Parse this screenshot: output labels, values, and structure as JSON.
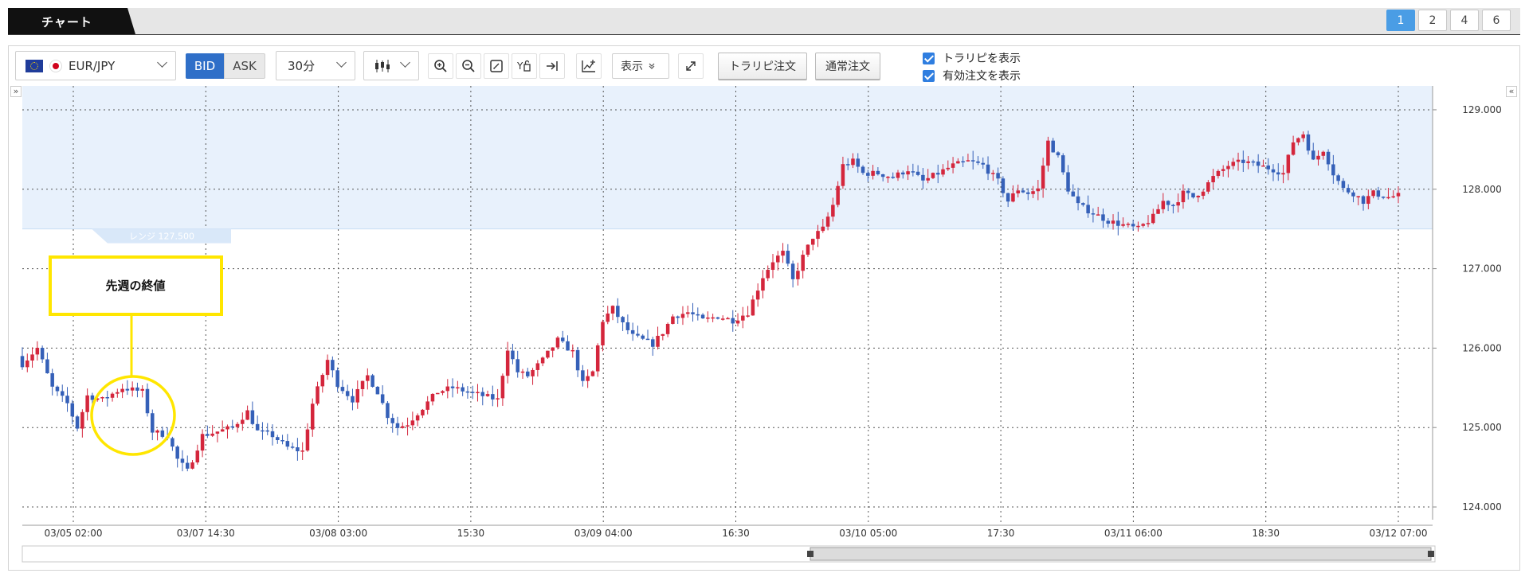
{
  "header": {
    "tab_label": "チャート",
    "layout_options": [
      "1",
      "2",
      "4",
      "6"
    ],
    "active_layout": "1"
  },
  "toolbar": {
    "currency_pair": "EUR/JPY",
    "bid_label": "BID",
    "ask_label": "ASK",
    "period": "30分",
    "display_label": "表示",
    "trap_order_label": "トラリピ注文",
    "normal_order_label": "通常注文",
    "show_trap_label": "トラリピを表示",
    "show_orders_label": "有効注文を表示"
  },
  "annotation": {
    "label": "先週の終値",
    "color": "#ffe600"
  },
  "range_band": {
    "label": "レンジ 127.500",
    "low": 127.5,
    "high": 129.5,
    "color": "#e8f1fc"
  },
  "colors": {
    "up": "#d4263c",
    "down": "#3560b8",
    "accent": "#4a9de5"
  },
  "chart_data": {
    "type": "candlestick",
    "pair": "EUR/JPY",
    "interval": "30m",
    "ylim": [
      123.9,
      129.3
    ],
    "yticks": [
      "124.000",
      "125.000",
      "126.000",
      "127.000",
      "128.000",
      "129.000"
    ],
    "xticks": [
      "03/05 02:00",
      "03/07 14:30",
      "03/08 03:00",
      "15:30",
      "03/09 04:00",
      "16:30",
      "03/10 05:00",
      "17:30",
      "03/11 06:00",
      "18:30",
      "03/12 07:00"
    ],
    "close_path": [
      [
        0,
        125.8
      ],
      [
        3,
        126.0
      ],
      [
        6,
        125.5
      ],
      [
        9,
        125.3
      ],
      [
        11,
        125.0
      ],
      [
        13,
        125.4
      ],
      [
        16,
        125.35
      ],
      [
        20,
        125.5
      ],
      [
        24,
        125.45
      ],
      [
        26,
        124.95
      ],
      [
        29,
        124.9
      ],
      [
        31,
        124.6
      ],
      [
        33,
        124.45
      ],
      [
        36,
        124.9
      ],
      [
        39,
        124.95
      ],
      [
        42,
        125.0
      ],
      [
        45,
        125.2
      ],
      [
        47,
        124.95
      ],
      [
        50,
        124.9
      ],
      [
        53,
        124.75
      ],
      [
        56,
        124.7
      ],
      [
        58,
        125.3
      ],
      [
        61,
        125.85
      ],
      [
        63,
        125.55
      ],
      [
        66,
        125.35
      ],
      [
        69,
        125.65
      ],
      [
        71,
        125.45
      ],
      [
        73,
        125.15
      ],
      [
        75,
        125.0
      ],
      [
        77,
        125.05
      ],
      [
        80,
        125.25
      ],
      [
        83,
        125.45
      ],
      [
        86,
        125.5
      ],
      [
        89,
        125.45
      ],
      [
        92,
        125.4
      ],
      [
        95,
        125.35
      ],
      [
        97,
        126.0
      ],
      [
        99,
        125.7
      ],
      [
        101,
        125.65
      ],
      [
        104,
        125.85
      ],
      [
        107,
        126.1
      ],
      [
        110,
        125.95
      ],
      [
        112,
        125.55
      ],
      [
        114,
        125.7
      ],
      [
        116,
        126.35
      ],
      [
        118,
        126.5
      ],
      [
        120,
        126.3
      ],
      [
        122,
        126.15
      ],
      [
        124,
        126.1
      ],
      [
        126,
        126.05
      ],
      [
        128,
        126.2
      ],
      [
        130,
        126.4
      ],
      [
        133,
        126.45
      ],
      [
        136,
        126.35
      ],
      [
        139,
        126.4
      ],
      [
        142,
        126.35
      ],
      [
        145,
        126.45
      ],
      [
        148,
        126.9
      ],
      [
        150,
        127.1
      ],
      [
        152,
        127.2
      ],
      [
        154,
        126.85
      ],
      [
        156,
        127.15
      ],
      [
        158,
        127.4
      ],
      [
        160,
        127.5
      ],
      [
        162,
        127.8
      ],
      [
        164,
        128.3
      ],
      [
        166,
        128.35
      ],
      [
        168,
        128.2
      ],
      [
        171,
        128.2
      ],
      [
        174,
        128.15
      ],
      [
        177,
        128.25
      ],
      [
        180,
        128.1
      ],
      [
        183,
        128.2
      ],
      [
        186,
        128.3
      ],
      [
        189,
        128.35
      ],
      [
        192,
        128.3
      ],
      [
        195,
        128.1
      ],
      [
        197,
        127.85
      ],
      [
        199,
        128.0
      ],
      [
        201,
        127.95
      ],
      [
        203,
        128.0
      ],
      [
        205,
        128.6
      ],
      [
        207,
        128.4
      ],
      [
        209,
        128.0
      ],
      [
        211,
        127.8
      ],
      [
        214,
        127.7
      ],
      [
        217,
        127.6
      ],
      [
        220,
        127.55
      ],
      [
        223,
        127.5
      ],
      [
        226,
        127.65
      ],
      [
        228,
        127.85
      ],
      [
        230,
        127.8
      ],
      [
        232,
        127.95
      ],
      [
        234,
        127.9
      ],
      [
        236,
        128.0
      ],
      [
        238,
        128.15
      ],
      [
        241,
        128.3
      ],
      [
        244,
        128.35
      ],
      [
        247,
        128.3
      ],
      [
        250,
        128.25
      ],
      [
        252,
        128.2
      ],
      [
        254,
        128.6
      ],
      [
        256,
        128.7
      ],
      [
        258,
        128.35
      ],
      [
        260,
        128.5
      ],
      [
        262,
        128.2
      ],
      [
        264,
        128.0
      ],
      [
        266,
        127.95
      ],
      [
        268,
        127.85
      ],
      [
        270,
        127.95
      ],
      [
        273,
        127.9
      ],
      [
        275,
        127.92
      ]
    ]
  }
}
